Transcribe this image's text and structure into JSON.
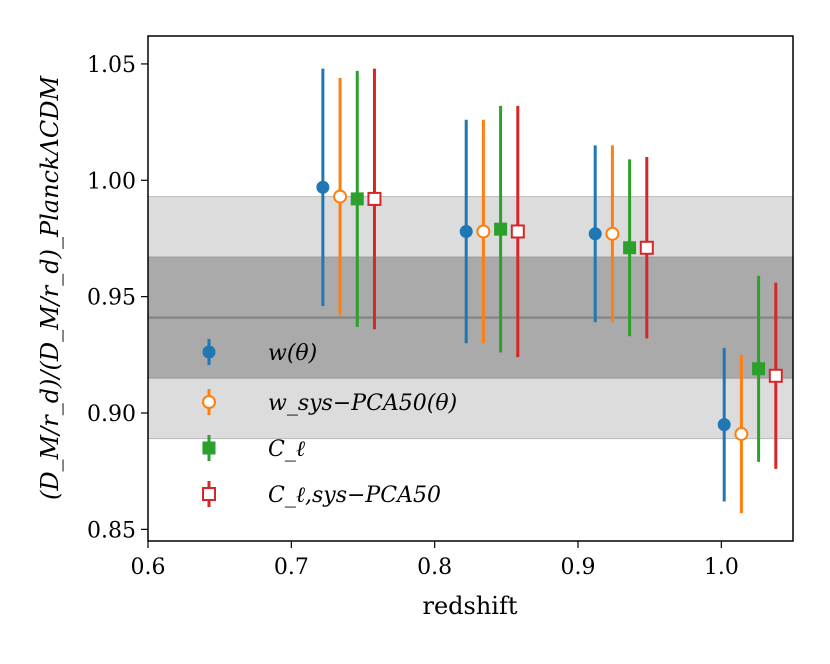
{
  "chart_data": {
    "type": "scatter",
    "title": "",
    "xlabel": "redshift",
    "ylabel": "(D_M/r_d)/(D_M/r_d)_PlanckΛCDM",
    "xlim": [
      0.6,
      1.05
    ],
    "ylim": [
      0.845,
      1.062
    ],
    "xticks": [
      "0.6",
      "0.7",
      "0.8",
      "0.9",
      "1.0"
    ],
    "yticks": [
      "0.85",
      "0.90",
      "0.95",
      "1.00",
      "1.05"
    ],
    "grid": false,
    "legend_position": "center-left",
    "bands": {
      "center": 0.941,
      "inner": [
        0.915,
        0.967
      ],
      "outer": [
        0.889,
        0.993
      ],
      "inner_color": "#aaaaaa",
      "outer_color": "#dcdcdc",
      "line_color": "#888888"
    },
    "series": [
      {
        "name": "w(θ)",
        "color": "#1f77b4",
        "marker": "circle",
        "filled": true,
        "points": [
          {
            "x": 0.722,
            "y": 0.997,
            "lo": 0.946,
            "hi": 1.048
          },
          {
            "x": 0.822,
            "y": 0.978,
            "lo": 0.93,
            "hi": 1.026
          },
          {
            "x": 0.912,
            "y": 0.977,
            "lo": 0.939,
            "hi": 1.015
          },
          {
            "x": 1.002,
            "y": 0.895,
            "lo": 0.862,
            "hi": 0.928
          }
        ]
      },
      {
        "name": "w_sys−PCA50(θ)",
        "color": "#ff7f0e",
        "marker": "circle",
        "filled": false,
        "points": [
          {
            "x": 0.734,
            "y": 0.993,
            "lo": 0.942,
            "hi": 1.044
          },
          {
            "x": 0.834,
            "y": 0.978,
            "lo": 0.93,
            "hi": 1.026
          },
          {
            "x": 0.924,
            "y": 0.977,
            "lo": 0.939,
            "hi": 1.015
          },
          {
            "x": 1.014,
            "y": 0.891,
            "lo": 0.857,
            "hi": 0.925
          }
        ]
      },
      {
        "name": "C_ℓ",
        "color": "#2ca02c",
        "marker": "square",
        "filled": true,
        "points": [
          {
            "x": 0.746,
            "y": 0.992,
            "lo": 0.937,
            "hi": 1.047
          },
          {
            "x": 0.846,
            "y": 0.979,
            "lo": 0.926,
            "hi": 1.032
          },
          {
            "x": 0.936,
            "y": 0.971,
            "lo": 0.933,
            "hi": 1.009
          },
          {
            "x": 1.026,
            "y": 0.919,
            "lo": 0.879,
            "hi": 0.959
          }
        ]
      },
      {
        "name": "C_ℓ,sys−PCA50",
        "color": "#d62728",
        "marker": "square",
        "filled": false,
        "points": [
          {
            "x": 0.758,
            "y": 0.992,
            "lo": 0.936,
            "hi": 1.048
          },
          {
            "x": 0.858,
            "y": 0.978,
            "lo": 0.924,
            "hi": 1.032
          },
          {
            "x": 0.948,
            "y": 0.971,
            "lo": 0.932,
            "hi": 1.01
          },
          {
            "x": 1.038,
            "y": 0.916,
            "lo": 0.876,
            "hi": 0.956
          }
        ]
      }
    ]
  }
}
